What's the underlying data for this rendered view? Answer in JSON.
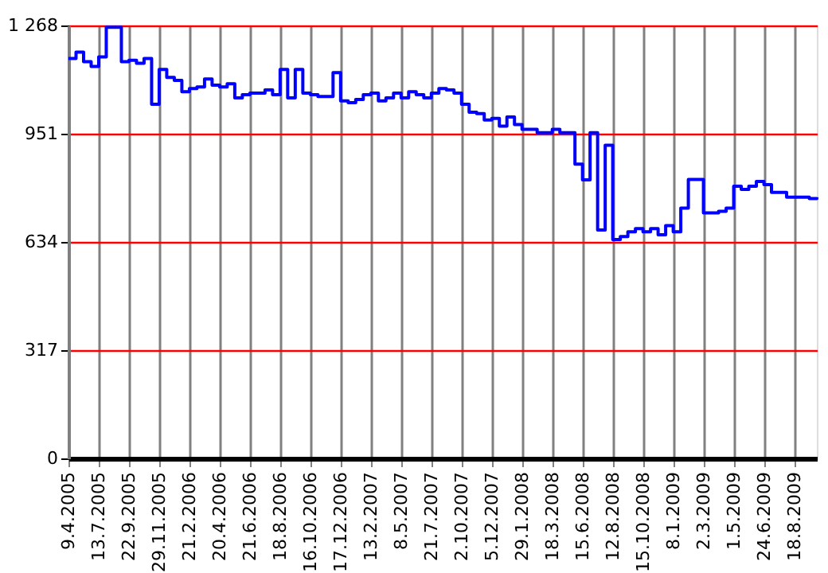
{
  "chart_data": {
    "type": "step",
    "categories": [
      "9.4.2005",
      null,
      null,
      null,
      "13.7.2005",
      null,
      null,
      null,
      "22.9.2005",
      null,
      null,
      null,
      "29.11.2005",
      null,
      null,
      null,
      "21.2.2006",
      null,
      null,
      null,
      "20.4.2006",
      null,
      null,
      null,
      "21.6.2006",
      null,
      null,
      null,
      "18.8.2006",
      null,
      null,
      null,
      "16.10.2006",
      null,
      null,
      null,
      "17.12.2006",
      null,
      null,
      null,
      "13.2.2007",
      null,
      null,
      null,
      "8.5.2007",
      null,
      null,
      null,
      "21.7.2007",
      null,
      null,
      null,
      "2.10.2007",
      null,
      null,
      null,
      "5.12.2007",
      null,
      null,
      null,
      "29.1.2008",
      null,
      null,
      null,
      "18.3.2008",
      null,
      null,
      null,
      "15.6.2008",
      null,
      null,
      null,
      "12.8.2008",
      null,
      null,
      null,
      "15.10.2008",
      null,
      null,
      null,
      "8.1.2009",
      null,
      null,
      null,
      "2.3.2009",
      null,
      null,
      null,
      "1.5.2009",
      null,
      null,
      null,
      "24.6.2009",
      null,
      null,
      null,
      "18.8.2009",
      null,
      null,
      null
    ],
    "series": [
      {
        "color": "#0000ff",
        "values": [
          1171,
          1190,
          1162,
          1148,
          1176,
          1263,
          1263,
          1162,
          1166,
          1157,
          1171,
          1037,
          1139,
          1116,
          1107,
          1074,
          1083,
          1088,
          1111,
          1093,
          1088,
          1097,
          1056,
          1065,
          1070,
          1070,
          1079,
          1065,
          1139,
          1056,
          1139,
          1070,
          1065,
          1060,
          1060,
          1130,
          1047,
          1042,
          1051,
          1065,
          1070,
          1047,
          1056,
          1070,
          1056,
          1074,
          1065,
          1056,
          1070,
          1083,
          1079,
          1070,
          1037,
          1014,
          1010,
          991,
          996,
          973,
          1000,
          978,
          964,
          964,
          954,
          954,
          964,
          954,
          954,
          862,
          816,
          954,
          669,
          917,
          641,
          650,
          664,
          673,
          664,
          673,
          655,
          682,
          664,
          733,
          817,
          817,
          719,
          719,
          724,
          733,
          797,
          788,
          797,
          811,
          802,
          779,
          779,
          765,
          765,
          765,
          761,
          765
        ]
      }
    ],
    "ylim": [
      0,
      1268
    ],
    "yticks": [
      0,
      317,
      634,
      951,
      {
        "value": 1268,
        "label": "1 268"
      }
    ],
    "grid": true,
    "line_style": "solid",
    "marker": "none"
  }
}
